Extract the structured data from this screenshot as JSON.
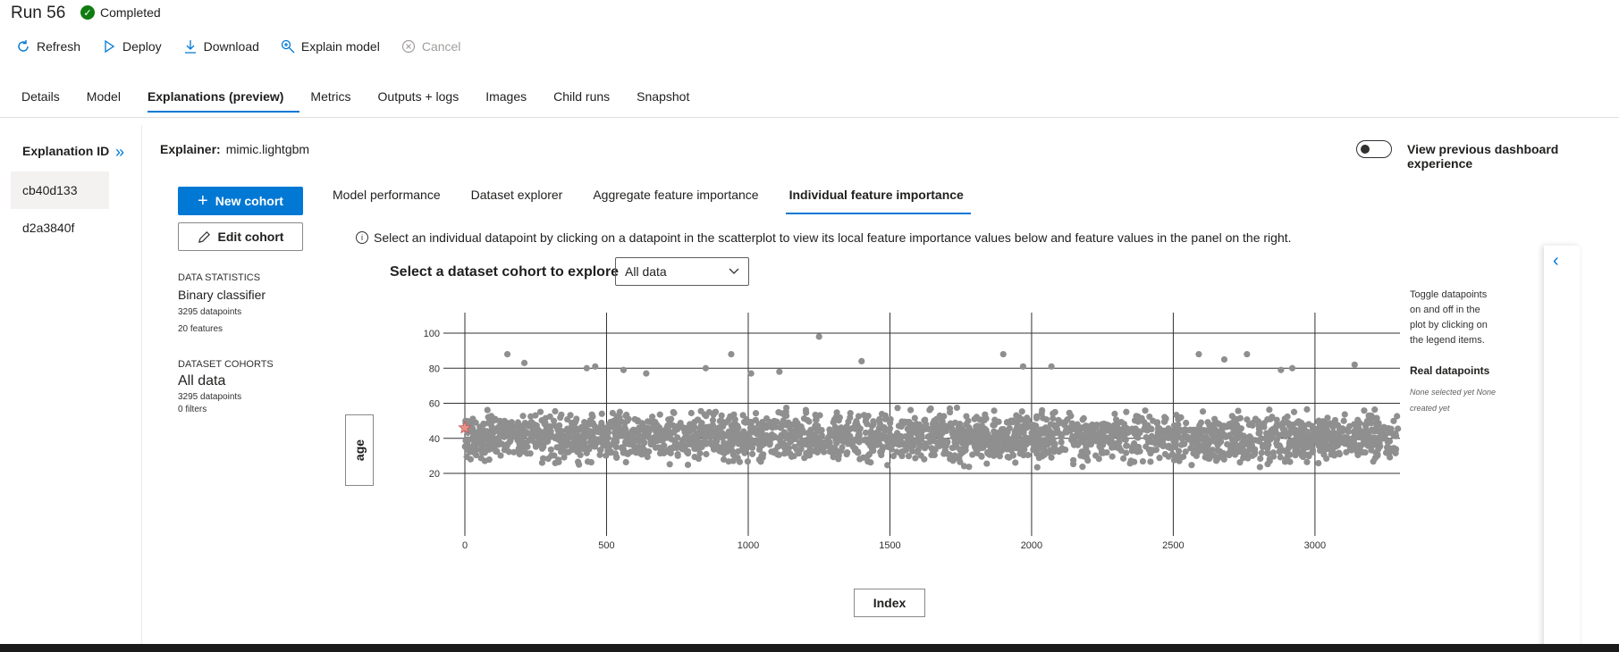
{
  "header": {
    "title": "Run 56",
    "status": "Completed"
  },
  "toolbar": {
    "refresh": "Refresh",
    "deploy": "Deploy",
    "download": "Download",
    "explain": "Explain model",
    "cancel": "Cancel"
  },
  "tabs": [
    "Details",
    "Model",
    "Explanations (preview)",
    "Metrics",
    "Outputs + logs",
    "Images",
    "Child runs",
    "Snapshot"
  ],
  "active_tab": "Explanations (preview)",
  "sidebar": {
    "heading": "Explanation ID",
    "items": [
      "cb40d133",
      "d2a3840f"
    ]
  },
  "explainer": {
    "label": "Explainer:",
    "value": "mimic.lightgbm"
  },
  "toggle_label": "View previous dashboard experience",
  "cohort_buttons": {
    "new": "New cohort",
    "edit": "Edit cohort"
  },
  "stats": {
    "heading": "DATA STATISTICS",
    "type": "Binary classifier",
    "datapoints": "3295 datapoints",
    "features": "20 features"
  },
  "cohorts": {
    "heading": "DATASET COHORTS",
    "name": "All data",
    "datapoints": "3295 datapoints",
    "filters": "0 filters"
  },
  "feature_tabs": [
    "Model performance",
    "Dataset explorer",
    "Aggregate feature importance",
    "Individual feature importance"
  ],
  "active_feature_tab": "Individual feature importance",
  "info_text": "Select an individual datapoint by clicking on a datapoint in the scatterplot to view its local feature importance values below and feature values in the panel on the right.",
  "cohort_select": {
    "label": "Select a dataset cohort to explore",
    "value": "All data"
  },
  "legend": {
    "help": "Toggle datapoints on and off in the plot by clicking on the legend items.",
    "heading": "Real datapoints",
    "empty": "None selected yet  None created yet"
  },
  "colors": {
    "accent": "#0078d4",
    "point": "#8f8f8f",
    "highlight": "#e8908a",
    "success": "#107c10"
  },
  "chart_data": {
    "type": "scatter",
    "xlabel": "Index",
    "ylabel": "age",
    "xlim": [
      0,
      3300
    ],
    "ylim": [
      15,
      100
    ],
    "xticks": [
      0,
      500,
      1000,
      1500,
      2000,
      2500,
      3000
    ],
    "yticks": [
      20,
      40,
      60,
      80,
      100
    ],
    "n_points": 3295,
    "y_range_dense": [
      21,
      60
    ],
    "outliers": [
      {
        "x": 150,
        "y": 88
      },
      {
        "x": 210,
        "y": 83
      },
      {
        "x": 430,
        "y": 80
      },
      {
        "x": 460,
        "y": 81
      },
      {
        "x": 560,
        "y": 79
      },
      {
        "x": 640,
        "y": 77
      },
      {
        "x": 850,
        "y": 80
      },
      {
        "x": 940,
        "y": 88
      },
      {
        "x": 1010,
        "y": 77
      },
      {
        "x": 1110,
        "y": 78
      },
      {
        "x": 1250,
        "y": 98
      },
      {
        "x": 1400,
        "y": 84
      },
      {
        "x": 1900,
        "y": 88
      },
      {
        "x": 1970,
        "y": 81
      },
      {
        "x": 2070,
        "y": 81
      },
      {
        "x": 2590,
        "y": 88
      },
      {
        "x": 2680,
        "y": 85
      },
      {
        "x": 2760,
        "y": 88
      },
      {
        "x": 2880,
        "y": 79
      },
      {
        "x": 2920,
        "y": 80
      },
      {
        "x": 3140,
        "y": 82
      }
    ],
    "selected": {
      "x": 0,
      "y": 46
    }
  }
}
